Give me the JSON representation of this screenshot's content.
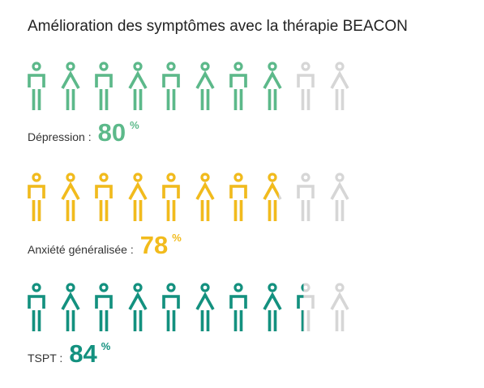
{
  "colors": {
    "depression": "#5cb98a",
    "anxiety": "#f2bb1c",
    "ptsd": "#13917f",
    "inactive": "#d6d6d6"
  },
  "chart_data": {
    "type": "pictograph",
    "title": "Amélioration des symptômes avec la thérapie BEACON",
    "icons_per_row": 10,
    "categories": [
      "Dépression :",
      "Anxiété généralisée :",
      "TSPT :"
    ],
    "series": [
      {
        "label": "Dépression :",
        "value": 80,
        "unit": "%",
        "color": "#5cb98a"
      },
      {
        "label": "Anxiété généralisée :",
        "value": 78,
        "unit": "%",
        "color": "#f2bb1c"
      },
      {
        "label": "TSPT :",
        "value": 84,
        "unit": "%",
        "color": "#13917f"
      }
    ]
  }
}
